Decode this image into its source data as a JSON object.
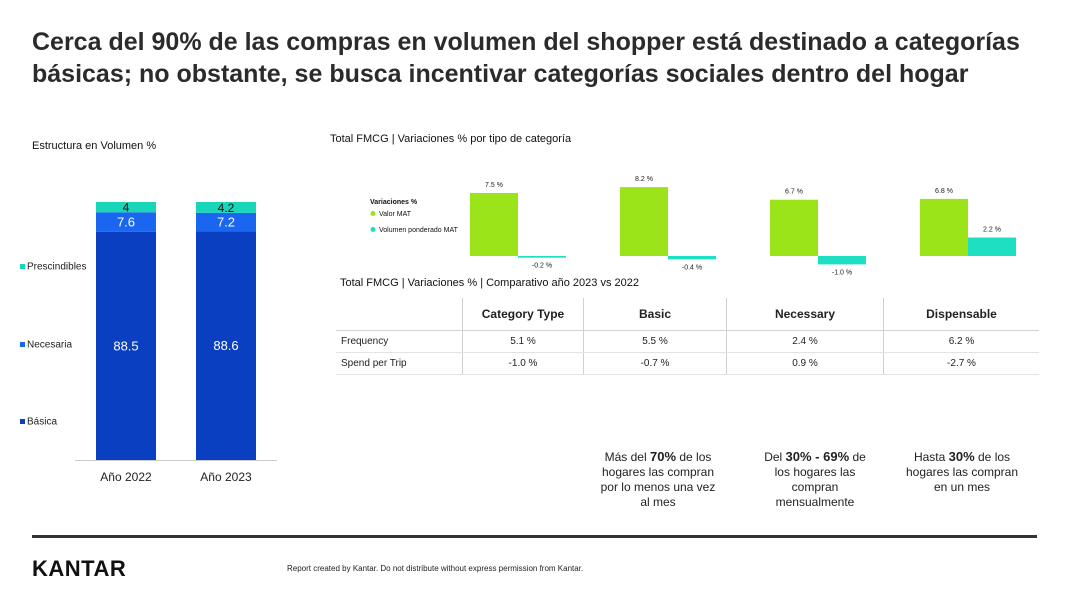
{
  "title": "Cerca del 90% de las compras en volumen del shopper está destinado a categorías básicas; no obstante, se busca incentivar categorías sociales dentro del hogar",
  "structure_label": "Estructura en Volumen %",
  "variations_label": "Total FMCG | Variaciones % por tipo de categoría",
  "comparative_label": "Total FMCG | Variaciones % | Comparativo año 2023 vs 2022",
  "colors": {
    "basica": "#0a3fc1",
    "necesaria": "#1a66f0",
    "prescindibles": "#19d6b8",
    "valor_mat": "#9be41a",
    "volumen_mat": "#1de0c2"
  },
  "chart_data": [
    {
      "type": "bar",
      "stacked": true,
      "categories": [
        "Año 2022",
        "Año 2023"
      ],
      "series": [
        {
          "name": "Básica",
          "values": [
            88.5,
            88.6
          ],
          "labels": [
            "88.5",
            "88.6"
          ]
        },
        {
          "name": "Necesaria",
          "values": [
            7.6,
            7.2
          ],
          "labels": [
            "7.6",
            "7.2"
          ]
        },
        {
          "name": "Prescindibles",
          "values": [
            4,
            4.2
          ],
          "labels": [
            "4",
            "4.2"
          ]
        }
      ],
      "legend": [
        "Prescindibles",
        "Necesaria",
        "Básica"
      ],
      "legend_position": "left"
    },
    {
      "type": "bar",
      "legend_title": "Variaciones %",
      "categories": [
        "Category Type",
        "Basic",
        "Necessary",
        "Dispensable"
      ],
      "series": [
        {
          "name": "Valor MAT",
          "values": [
            7.5,
            8.2,
            6.7,
            6.8
          ],
          "labels": [
            "7.5 %",
            "8.2 %",
            "6.7 %",
            "6.8 %"
          ]
        },
        {
          "name": "Volumen ponderado MAT",
          "values": [
            -0.2,
            -0.4,
            -1.0,
            2.2
          ],
          "labels": [
            "-0.2 %",
            "-0.4 %",
            "-1.0 %",
            "2.2 %"
          ]
        }
      ]
    }
  ],
  "table": {
    "headers": [
      "",
      "Category Type",
      "Basic",
      "Necessary",
      "Dispensable"
    ],
    "rows": [
      {
        "label": "Frequency",
        "values": [
          "5.1 %",
          "5.5 %",
          "2.4 %",
          "6.2 %"
        ]
      },
      {
        "label": "Spend per Trip",
        "values": [
          "-1.0 %",
          "-0.7 %",
          "0.9 %",
          "-2.7 %"
        ]
      }
    ]
  },
  "notes": [
    {
      "pre": "Más del ",
      "strong": "70%",
      "post": " de los hogares las compran por lo menos una vez al mes"
    },
    {
      "pre": "Del ",
      "strong": "30% - 69%",
      "post": " de los hogares las compran mensualmente"
    },
    {
      "pre": "Hasta ",
      "strong": "30%",
      "post": " de los hogares las compran en un mes"
    }
  ],
  "footer": {
    "logo": "KANTAR",
    "disclaimer": "Report created by Kantar. Do not distribute without express permission from Kantar."
  }
}
